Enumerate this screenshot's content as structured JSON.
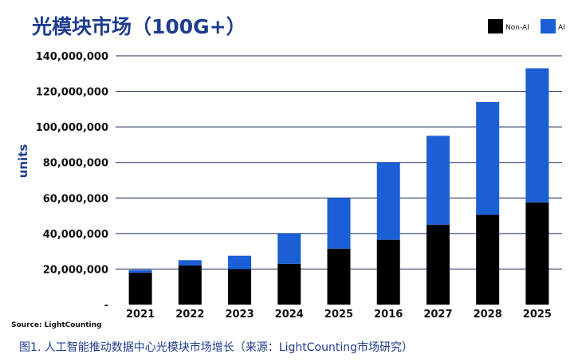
{
  "chart_data": {
    "type": "bar",
    "stacked": true,
    "title": "光模块市场（100G+）",
    "ylabel": "units",
    "xlabel": "",
    "categories": [
      "2021",
      "2022",
      "2023",
      "2024",
      "2025",
      "2016",
      "2027",
      "2028",
      "2025"
    ],
    "series": [
      {
        "name": "Non-AI",
        "color": "#000000",
        "values": [
          18000000,
          22000000,
          20000000,
          23000000,
          31500000,
          36500000,
          45000000,
          50500000,
          57500000
        ]
      },
      {
        "name": "AI",
        "color": "#1a5fd6",
        "values": [
          1500000,
          3000000,
          7500000,
          17000000,
          28500000,
          43500000,
          50000000,
          63500000,
          75500000
        ]
      }
    ],
    "ylim": [
      0,
      140000000
    ],
    "yticks": [
      0,
      20000000,
      40000000,
      60000000,
      80000000,
      100000000,
      120000000,
      140000000
    ],
    "ytick_labels": [
      "-",
      "20,000,000",
      "40,000,000",
      "60,000,000",
      "80,000,000",
      "100,000,000",
      "120,000,000",
      "140,000,000"
    ],
    "grid": true,
    "legend_position": "top-right"
  },
  "source": "Source: LightCounting",
  "caption": "图1. 人工智能推动数据中心光模块市场增长（来源：LightCounting市场研究）"
}
